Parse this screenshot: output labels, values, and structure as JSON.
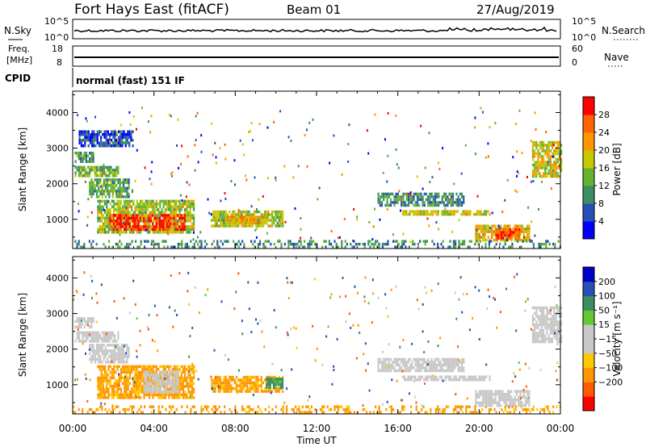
{
  "header": {
    "station": "Fort Hays East (fitACF)",
    "beam": "Beam 01",
    "date": "27/Aug/2019"
  },
  "top_panels": {
    "nsky_label": "N.Sky",
    "nsearch_label": "N.Search",
    "noise_tick_top": "10^5",
    "noise_tick_bottom": "10^0",
    "freq_label_1": "Freq.",
    "freq_label_2": "[MHz]",
    "freq_tick_top": "18",
    "freq_tick_bottom": "8",
    "nave_label": "Nave",
    "nave_tick_top": "60",
    "nave_tick_bottom": "0",
    "cpid_label": "CPID",
    "cpid_value": "normal (fast) 151 IF"
  },
  "colors": {
    "power_scale": [
      "#0000ff",
      "#2850b4",
      "#3c8c64",
      "#64b432",
      "#c8c800",
      "#ff9600",
      "#ff6400",
      "#ff0000"
    ],
    "velocity_scale": [
      "#ff0000",
      "#ff5a00",
      "#ff9600",
      "#ffc800",
      "#c8c8c8",
      "#c8c8c8",
      "#64c832",
      "#3c8c64",
      "#2850b4",
      "#0000c8"
    ]
  },
  "chart_data": [
    {
      "type": "heatmap",
      "name": "power",
      "x_ticks": [
        "00:00",
        "04:00",
        "08:00",
        "12:00",
        "16:00",
        "20:00",
        "00:00"
      ],
      "xlim_hours": [
        0,
        24
      ],
      "ylabel": "Slant Range [km]",
      "y_ticks": [
        1000,
        2000,
        3000,
        4000
      ],
      "ylim": [
        180,
        4600
      ],
      "colorbar_label": "Power [dB]",
      "colorbar_ticks": [
        4,
        8,
        12,
        16,
        20,
        24,
        28
      ],
      "colorbar_range": [
        0,
        32
      ],
      "regions": [
        {
          "t0": 0.1,
          "t1": 2.2,
          "r0": 2200,
          "r1": 2500,
          "level": 14
        },
        {
          "t0": 0.1,
          "t1": 1.0,
          "r0": 2650,
          "r1": 2900,
          "level": 12
        },
        {
          "t0": 0.8,
          "t1": 2.8,
          "r0": 1650,
          "r1": 2150,
          "level": 12
        },
        {
          "t0": 0.3,
          "t1": 3.0,
          "r0": 3100,
          "r1": 3500,
          "level": 6
        },
        {
          "t0": 1.2,
          "t1": 6.0,
          "r0": 650,
          "r1": 1550,
          "level": 16
        },
        {
          "t0": 1.8,
          "t1": 5.5,
          "r0": 700,
          "r1": 1150,
          "level": 28
        },
        {
          "t0": 6.8,
          "t1": 10.3,
          "r0": 850,
          "r1": 1250,
          "level": 16
        },
        {
          "t0": 7.5,
          "t1": 9.5,
          "r0": 900,
          "r1": 1100,
          "level": 22
        },
        {
          "t0": 15.0,
          "t1": 19.2,
          "r0": 1400,
          "r1": 1750,
          "level": 10
        },
        {
          "t0": 16.2,
          "t1": 20.5,
          "r0": 1150,
          "r1": 1260,
          "level": 18
        },
        {
          "t0": 19.8,
          "t1": 22.5,
          "r0": 380,
          "r1": 850,
          "level": 20
        },
        {
          "t0": 20.8,
          "t1": 22.0,
          "r0": 500,
          "r1": 750,
          "level": 28
        },
        {
          "t0": 22.6,
          "t1": 24.0,
          "r0": 2200,
          "r1": 3200,
          "level": 18
        },
        {
          "t0": 0.0,
          "t1": 24.0,
          "r0": 200,
          "r1": 420,
          "level": 10
        }
      ]
    },
    {
      "type": "heatmap",
      "name": "velocity",
      "x_ticks": [
        "00:00",
        "04:00",
        "08:00",
        "12:00",
        "16:00",
        "20:00",
        "00:00"
      ],
      "xlim_hours": [
        0,
        24
      ],
      "xlabel": "Time UT",
      "ylabel": "Slant Range [km]",
      "y_ticks": [
        1000,
        2000,
        3000,
        4000
      ],
      "ylim": [
        180,
        4600
      ],
      "colorbar_label": "Velocity [m s⁻¹]",
      "colorbar_ticks": [
        "200",
        "100",
        "50",
        "15",
        "−15",
        "−50",
        "−100",
        "−200"
      ],
      "regions": [
        {
          "t0": 0.1,
          "t1": 2.2,
          "r0": 2200,
          "r1": 2500,
          "level": 0
        },
        {
          "t0": 0.1,
          "t1": 1.0,
          "r0": 2650,
          "r1": 2900,
          "level": 0
        },
        {
          "t0": 0.8,
          "t1": 2.8,
          "r0": 1650,
          "r1": 2150,
          "level": 0
        },
        {
          "t0": 1.2,
          "t1": 6.0,
          "r0": 650,
          "r1": 1550,
          "level": -40
        },
        {
          "t0": 3.5,
          "t1": 5.2,
          "r0": 800,
          "r1": 1400,
          "level": 0
        },
        {
          "t0": 6.8,
          "t1": 10.3,
          "r0": 850,
          "r1": 1250,
          "level": -40
        },
        {
          "t0": 9.5,
          "t1": 10.3,
          "r0": 900,
          "r1": 1200,
          "level": 40
        },
        {
          "t0": 15.0,
          "t1": 19.2,
          "r0": 1400,
          "r1": 1750,
          "level": 0
        },
        {
          "t0": 16.2,
          "t1": 20.5,
          "r0": 1150,
          "r1": 1260,
          "level": 0
        },
        {
          "t0": 19.8,
          "t1": 22.5,
          "r0": 380,
          "r1": 850,
          "level": 0
        },
        {
          "t0": 22.6,
          "t1": 24.0,
          "r0": 2200,
          "r1": 3200,
          "level": 0
        },
        {
          "t0": 0.0,
          "t1": 24.0,
          "r0": 200,
          "r1": 420,
          "level": -40
        }
      ]
    }
  ]
}
